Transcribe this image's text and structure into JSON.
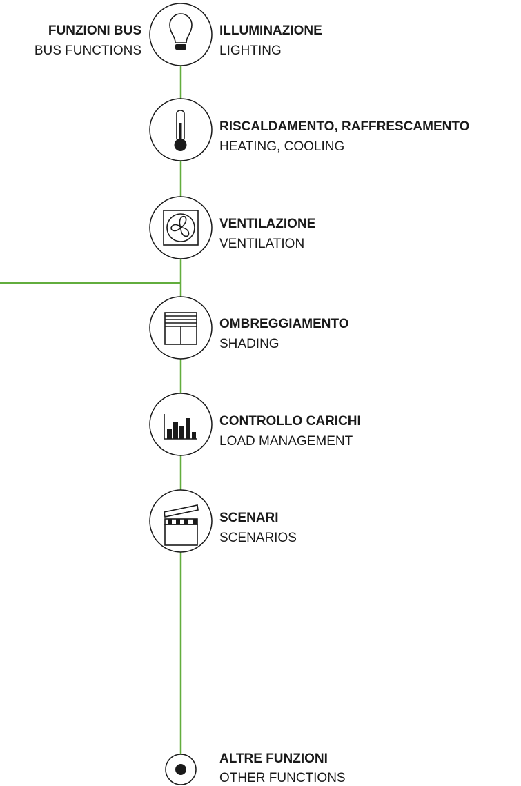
{
  "header": {
    "title": "FUNZIONI BUS",
    "subtitle": "BUS FUNCTIONS"
  },
  "items": [
    {
      "label": "ILLUMINAZIONE",
      "sublabel": "LIGHTING"
    },
    {
      "label": "RISCALDAMENTO, RAFFRESCAMENTO",
      "sublabel": "HEATING, COOLING"
    },
    {
      "label": "VENTILAZIONE",
      "sublabel": "VENTILATION"
    },
    {
      "label": "OMBREGGIAMENTO",
      "sublabel": "SHADING"
    },
    {
      "label": "CONTROLLO CARICHI",
      "sublabel": "LOAD MANAGEMENT"
    },
    {
      "label": "SCENARI",
      "sublabel": "SCENARIOS"
    }
  ],
  "end": {
    "label": "ALTRE FUNZIONI",
    "sublabel": "OTHER FUNCTIONS"
  }
}
